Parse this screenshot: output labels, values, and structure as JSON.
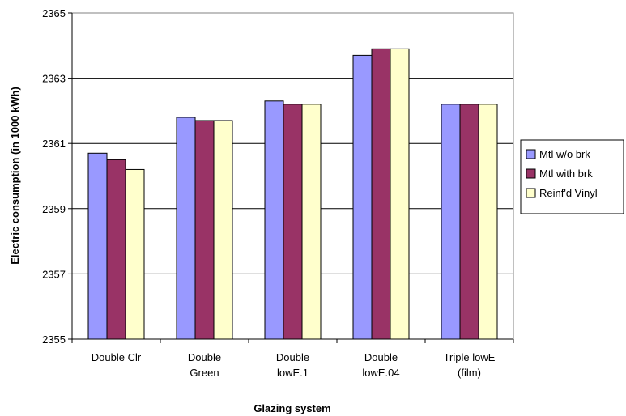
{
  "chart_data": {
    "type": "bar",
    "title": "",
    "xlabel": "Glazing system",
    "ylabel": "Electric consumption (in 1000 kWh)",
    "ylim": [
      2355,
      2365
    ],
    "yticks": [
      2355,
      2357,
      2359,
      2361,
      2363,
      2365
    ],
    "grid": true,
    "legend_position": "right",
    "categories": [
      [
        "Double Clr"
      ],
      [
        "Double",
        "Green"
      ],
      [
        "Double",
        "lowE.1"
      ],
      [
        "Double",
        "lowE.04"
      ],
      [
        "Triple lowE",
        "(film)"
      ]
    ],
    "series": [
      {
        "name": "Mtl w/o brk",
        "color": "#9999ff",
        "values": [
          2360.7,
          2361.8,
          2362.3,
          2363.7,
          2362.2
        ]
      },
      {
        "name": "Mtl with brk",
        "color": "#993366",
        "values": [
          2360.5,
          2361.7,
          2362.2,
          2363.9,
          2362.2
        ]
      },
      {
        "name": "Reinf'd Vinyl",
        "color": "#ffffcc",
        "values": [
          2360.2,
          2361.7,
          2362.2,
          2363.9,
          2362.2
        ]
      }
    ]
  }
}
